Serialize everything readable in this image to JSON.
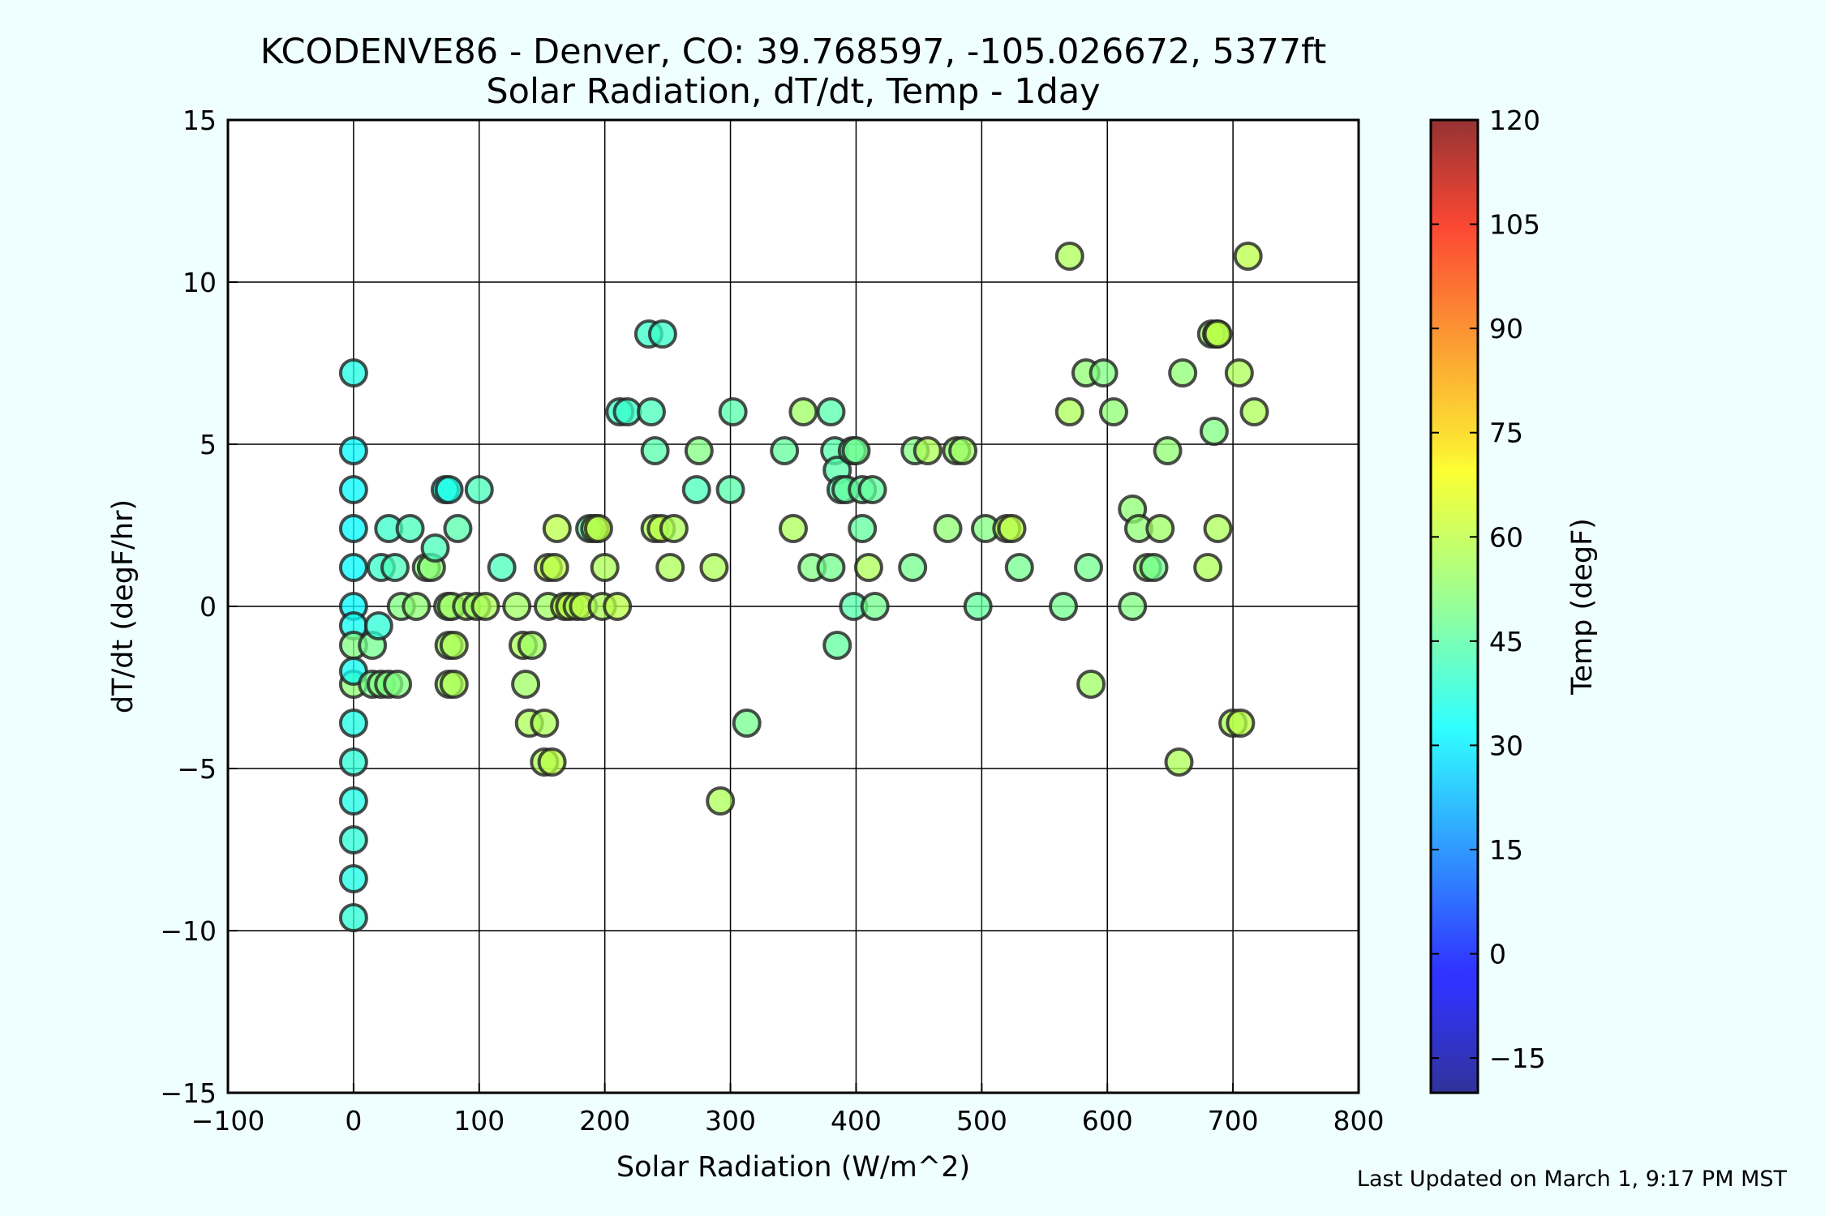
{
  "chart_data": {
    "type": "scatter",
    "title": "KCODENVE86 - Denver, CO: 39.768597, -105.026672, 5377ft",
    "subtitle": "Solar Radiation, dT/dt, Temp - 1day",
    "xlabel": "Solar Radiation (W/m^2)",
    "ylabel": "dT/dt (degF/hr)",
    "xlim": [
      -100,
      800
    ],
    "ylim": [
      -15,
      15
    ],
    "xticks": [
      -100,
      0,
      100,
      200,
      300,
      400,
      500,
      600,
      700,
      800
    ],
    "yticks": [
      -15,
      -10,
      -5,
      0,
      5,
      10,
      15
    ],
    "xtick_labels": [
      "−100",
      "0",
      "100",
      "200",
      "300",
      "400",
      "500",
      "600",
      "700",
      "800"
    ],
    "ytick_labels": [
      "−15",
      "−10",
      "−5",
      "0",
      "5",
      "10",
      "15"
    ],
    "grid": true,
    "colorbar": {
      "label": "Temp (degF)",
      "range": [
        -20,
        120
      ],
      "ticks": [
        -15,
        0,
        15,
        30,
        45,
        60,
        75,
        90,
        105,
        120
      ],
      "tick_labels": [
        "−15",
        "0",
        "15",
        "30",
        "45",
        "60",
        "75",
        "90",
        "105",
        "120"
      ],
      "colormap": "jet"
    },
    "points": [
      {
        "x": 0,
        "y": 7.2,
        "temp": 36
      },
      {
        "x": 0,
        "y": 4.8,
        "temp": 32
      },
      {
        "x": 0,
        "y": 3.6,
        "temp": 32
      },
      {
        "x": 0,
        "y": 2.4,
        "temp": 32
      },
      {
        "x": 0,
        "y": 1.2,
        "temp": 32
      },
      {
        "x": 0,
        "y": 0,
        "temp": 32
      },
      {
        "x": 0,
        "y": -0.6,
        "temp": 34
      },
      {
        "x": 0,
        "y": -1.2,
        "temp": 50
      },
      {
        "x": 0,
        "y": -2.4,
        "temp": 52
      },
      {
        "x": 0,
        "y": -2.0,
        "temp": 34
      },
      {
        "x": 0,
        "y": -3.6,
        "temp": 36
      },
      {
        "x": 0,
        "y": -4.8,
        "temp": 38
      },
      {
        "x": 0,
        "y": -6.0,
        "temp": 36
      },
      {
        "x": 0,
        "y": -7.2,
        "temp": 38
      },
      {
        "x": 0,
        "y": -8.4,
        "temp": 36
      },
      {
        "x": 0,
        "y": -9.6,
        "temp": 38
      },
      {
        "x": 15,
        "y": -1.2,
        "temp": 48
      },
      {
        "x": 20,
        "y": -0.6,
        "temp": 38
      },
      {
        "x": 15,
        "y": -2.4,
        "temp": 48
      },
      {
        "x": 22,
        "y": -2.4,
        "temp": 50
      },
      {
        "x": 28,
        "y": -2.4,
        "temp": 50
      },
      {
        "x": 35,
        "y": -2.4,
        "temp": 50
      },
      {
        "x": 22,
        "y": 1.2,
        "temp": 40
      },
      {
        "x": 28,
        "y": 2.4,
        "temp": 40
      },
      {
        "x": 33,
        "y": 1.2,
        "temp": 42
      },
      {
        "x": 45,
        "y": 2.4,
        "temp": 42
      },
      {
        "x": 38,
        "y": 0,
        "temp": 50
      },
      {
        "x": 50,
        "y": 0,
        "temp": 52
      },
      {
        "x": 58,
        "y": 1.2,
        "temp": 50
      },
      {
        "x": 62,
        "y": 1.2,
        "temp": 52
      },
      {
        "x": 65,
        "y": 1.8,
        "temp": 42
      },
      {
        "x": 73,
        "y": 3.6,
        "temp": 36
      },
      {
        "x": 76,
        "y": 3.6,
        "temp": 36
      },
      {
        "x": 83,
        "y": 2.4,
        "temp": 44
      },
      {
        "x": 100,
        "y": 3.6,
        "temp": 42
      },
      {
        "x": 75,
        "y": 0,
        "temp": 52
      },
      {
        "x": 78,
        "y": 0,
        "temp": 54
      },
      {
        "x": 76,
        "y": -1.2,
        "temp": 54
      },
      {
        "x": 80,
        "y": -1.2,
        "temp": 56
      },
      {
        "x": 76,
        "y": -2.4,
        "temp": 54
      },
      {
        "x": 80,
        "y": -2.4,
        "temp": 56
      },
      {
        "x": 90,
        "y": 0,
        "temp": 54
      },
      {
        "x": 98,
        "y": 0,
        "temp": 54
      },
      {
        "x": 105,
        "y": 0,
        "temp": 56
      },
      {
        "x": 118,
        "y": 1.2,
        "temp": 42
      },
      {
        "x": 130,
        "y": 0,
        "temp": 54
      },
      {
        "x": 135,
        "y": -1.2,
        "temp": 56
      },
      {
        "x": 142,
        "y": -1.2,
        "temp": 54
      },
      {
        "x": 137,
        "y": -2.4,
        "temp": 54
      },
      {
        "x": 140,
        "y": -3.6,
        "temp": 56
      },
      {
        "x": 152,
        "y": -3.6,
        "temp": 56
      },
      {
        "x": 152,
        "y": -4.8,
        "temp": 56
      },
      {
        "x": 158,
        "y": -4.8,
        "temp": 58
      },
      {
        "x": 155,
        "y": 0,
        "temp": 54
      },
      {
        "x": 155,
        "y": 1.2,
        "temp": 58
      },
      {
        "x": 160,
        "y": 1.2,
        "temp": 58
      },
      {
        "x": 162,
        "y": 2.4,
        "temp": 58
      },
      {
        "x": 168,
        "y": 0,
        "temp": 58
      },
      {
        "x": 172,
        "y": 0,
        "temp": 58
      },
      {
        "x": 178,
        "y": 0,
        "temp": 56
      },
      {
        "x": 183,
        "y": 0,
        "temp": 58
      },
      {
        "x": 188,
        "y": 2.4,
        "temp": 44
      },
      {
        "x": 192,
        "y": 2.4,
        "temp": 56
      },
      {
        "x": 195,
        "y": 2.4,
        "temp": 58
      },
      {
        "x": 198,
        "y": 0,
        "temp": 56
      },
      {
        "x": 200,
        "y": 1.2,
        "temp": 56
      },
      {
        "x": 210,
        "y": 0,
        "temp": 58
      },
      {
        "x": 212,
        "y": 6.0,
        "temp": 40
      },
      {
        "x": 218,
        "y": 6.0,
        "temp": 40
      },
      {
        "x": 235,
        "y": 8.4,
        "temp": 40
      },
      {
        "x": 246,
        "y": 8.4,
        "temp": 40
      },
      {
        "x": 237,
        "y": 6.0,
        "temp": 42
      },
      {
        "x": 240,
        "y": 4.8,
        "temp": 44
      },
      {
        "x": 240,
        "y": 2.4,
        "temp": 56
      },
      {
        "x": 245,
        "y": 2.4,
        "temp": 58
      },
      {
        "x": 255,
        "y": 2.4,
        "temp": 56
      },
      {
        "x": 252,
        "y": 1.2,
        "temp": 56
      },
      {
        "x": 273,
        "y": 3.6,
        "temp": 42
      },
      {
        "x": 275,
        "y": 4.8,
        "temp": 50
      },
      {
        "x": 287,
        "y": 1.2,
        "temp": 56
      },
      {
        "x": 292,
        "y": -6.0,
        "temp": 56
      },
      {
        "x": 300,
        "y": 3.6,
        "temp": 44
      },
      {
        "x": 302,
        "y": 6.0,
        "temp": 44
      },
      {
        "x": 313,
        "y": -3.6,
        "temp": 48
      },
      {
        "x": 343,
        "y": 4.8,
        "temp": 46
      },
      {
        "x": 350,
        "y": 2.4,
        "temp": 56
      },
      {
        "x": 358,
        "y": 6.0,
        "temp": 54
      },
      {
        "x": 365,
        "y": 1.2,
        "temp": 50
      },
      {
        "x": 380,
        "y": 6.0,
        "temp": 44
      },
      {
        "x": 380,
        "y": 1.2,
        "temp": 48
      },
      {
        "x": 383,
        "y": 4.8,
        "temp": 44
      },
      {
        "x": 385,
        "y": 4.2,
        "temp": 44
      },
      {
        "x": 385,
        "y": -1.2,
        "temp": 46
      },
      {
        "x": 388,
        "y": 3.6,
        "temp": 44
      },
      {
        "x": 392,
        "y": 3.6,
        "temp": 46
      },
      {
        "x": 397,
        "y": 4.8,
        "temp": 44
      },
      {
        "x": 400,
        "y": 4.8,
        "temp": 48
      },
      {
        "x": 398,
        "y": 0,
        "temp": 44
      },
      {
        "x": 405,
        "y": 3.6,
        "temp": 46
      },
      {
        "x": 405,
        "y": 2.4,
        "temp": 46
      },
      {
        "x": 410,
        "y": 1.2,
        "temp": 56
      },
      {
        "x": 413,
        "y": 3.6,
        "temp": 46
      },
      {
        "x": 415,
        "y": 0,
        "temp": 48
      },
      {
        "x": 445,
        "y": 1.2,
        "temp": 48
      },
      {
        "x": 447,
        "y": 4.8,
        "temp": 50
      },
      {
        "x": 457,
        "y": 4.8,
        "temp": 56
      },
      {
        "x": 473,
        "y": 2.4,
        "temp": 52
      },
      {
        "x": 480,
        "y": 4.8,
        "temp": 52
      },
      {
        "x": 485,
        "y": 4.8,
        "temp": 54
      },
      {
        "x": 497,
        "y": 0,
        "temp": 46
      },
      {
        "x": 503,
        "y": 2.4,
        "temp": 50
      },
      {
        "x": 520,
        "y": 2.4,
        "temp": 56
      },
      {
        "x": 524,
        "y": 2.4,
        "temp": 58
      },
      {
        "x": 530,
        "y": 1.2,
        "temp": 48
      },
      {
        "x": 565,
        "y": 0,
        "temp": 48
      },
      {
        "x": 570,
        "y": 6.0,
        "temp": 56
      },
      {
        "x": 570,
        "y": 10.8,
        "temp": 56
      },
      {
        "x": 583,
        "y": 7.2,
        "temp": 52
      },
      {
        "x": 585,
        "y": 1.2,
        "temp": 48
      },
      {
        "x": 587,
        "y": -2.4,
        "temp": 54
      },
      {
        "x": 597,
        "y": 7.2,
        "temp": 50
      },
      {
        "x": 605,
        "y": 6.0,
        "temp": 52
      },
      {
        "x": 620,
        "y": 3.0,
        "temp": 52
      },
      {
        "x": 620,
        "y": 0,
        "temp": 50
      },
      {
        "x": 625,
        "y": 2.4,
        "temp": 52
      },
      {
        "x": 632,
        "y": 1.2,
        "temp": 52
      },
      {
        "x": 637,
        "y": 1.2,
        "temp": 48
      },
      {
        "x": 642,
        "y": 2.4,
        "temp": 54
      },
      {
        "x": 648,
        "y": 4.8,
        "temp": 52
      },
      {
        "x": 657,
        "y": -4.8,
        "temp": 56
      },
      {
        "x": 660,
        "y": 7.2,
        "temp": 52
      },
      {
        "x": 680,
        "y": 1.2,
        "temp": 56
      },
      {
        "x": 683,
        "y": 8.4,
        "temp": 54
      },
      {
        "x": 687,
        "y": 8.4,
        "temp": 56
      },
      {
        "x": 688,
        "y": 8.4,
        "temp": 58
      },
      {
        "x": 685,
        "y": 5.4,
        "temp": 50
      },
      {
        "x": 688,
        "y": 2.4,
        "temp": 56
      },
      {
        "x": 700,
        "y": -3.6,
        "temp": 56
      },
      {
        "x": 706,
        "y": -3.6,
        "temp": 58
      },
      {
        "x": 705,
        "y": 7.2,
        "temp": 56
      },
      {
        "x": 712,
        "y": 10.8,
        "temp": 58
      },
      {
        "x": 717,
        "y": 6.0,
        "temp": 56
      }
    ]
  },
  "footer": {
    "updated": "Last Updated on March 1, 9:17 PM MST"
  }
}
